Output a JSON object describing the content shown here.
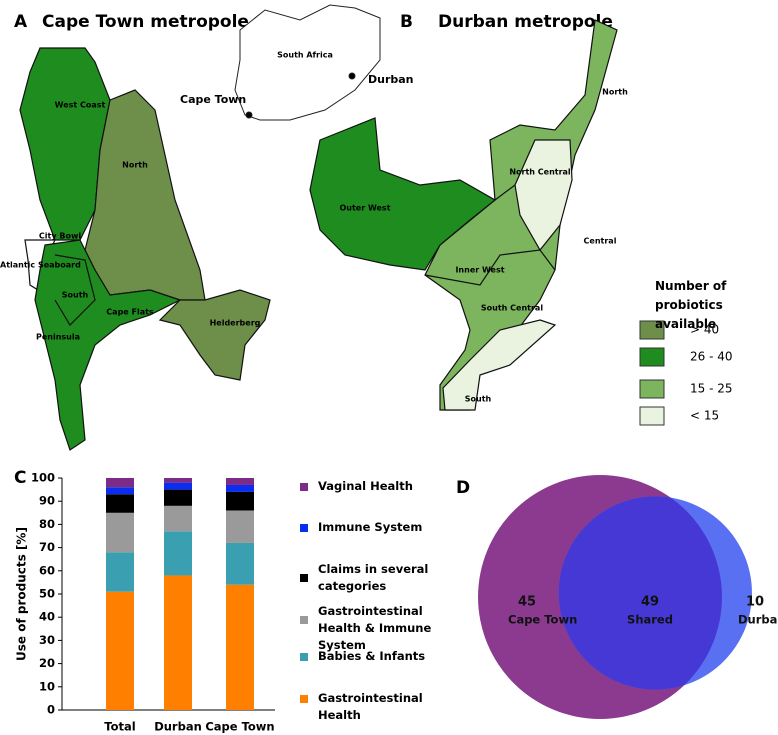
{
  "panel_a": {
    "letter": "A",
    "title": "Cape Town metropole",
    "inset": {
      "country": "South Africa",
      "cities": [
        "Cape Town",
        "Durban"
      ]
    },
    "regions": [
      "West Coast",
      "North",
      "City Bowl",
      "Atlantic Seaboard",
      "South",
      "Cape Flats",
      "Helderberg",
      "Peninsula"
    ]
  },
  "panel_b": {
    "letter": "B",
    "title": "Durban metropole",
    "regions": [
      "North",
      "North Central",
      "Outer West",
      "Central",
      "Inner West",
      "South Central",
      "South"
    ]
  },
  "map_legend": {
    "title": "Number of probiotics available",
    "items": [
      {
        "label": "> 40",
        "color": "#6e8f4a"
      },
      {
        "label": "26 - 40",
        "color": "#1f8c1f"
      },
      {
        "label": "15 - 25",
        "color": "#7db55f"
      },
      {
        "label": "< 15",
        "color": "#eaf3df"
      }
    ]
  },
  "chart_data": [
    {
      "type": "bar",
      "stacked": true,
      "letter": "C",
      "y_label": "Use of products [%]",
      "categories": [
        "Total",
        "Durban",
        "Cape Town"
      ],
      "series": [
        {
          "name": "Gastrointestinal Health",
          "color": "#ff7f00",
          "values": [
            51,
            58,
            54
          ]
        },
        {
          "name": "Babies & Infants",
          "color": "#3a9fb0",
          "values": [
            17,
            19,
            18
          ]
        },
        {
          "name": "Gastrointestinal Health & Immune System",
          "color": "#9a9a9a",
          "values": [
            17,
            11,
            14
          ]
        },
        {
          "name": "Claims in several categories",
          "color": "#000000",
          "values": [
            8,
            7,
            8
          ]
        },
        {
          "name": "Immune System",
          "color": "#0b2df0",
          "values": [
            3,
            3,
            3
          ]
        },
        {
          "name": "Vaginal Health",
          "color": "#7b2c86",
          "values": [
            4,
            2,
            3
          ]
        }
      ],
      "ylim": [
        0,
        100
      ],
      "yticks": [
        0,
        10,
        20,
        30,
        40,
        50,
        60,
        70,
        80,
        90,
        100
      ]
    },
    {
      "type": "venn",
      "letter": "D",
      "categories": [
        "Cape Town",
        "Shared",
        "Durban"
      ],
      "values": [
        45,
        49,
        10
      ],
      "colors": [
        "#8b3a8f",
        "#4638d4",
        "#5a70f2"
      ]
    }
  ]
}
